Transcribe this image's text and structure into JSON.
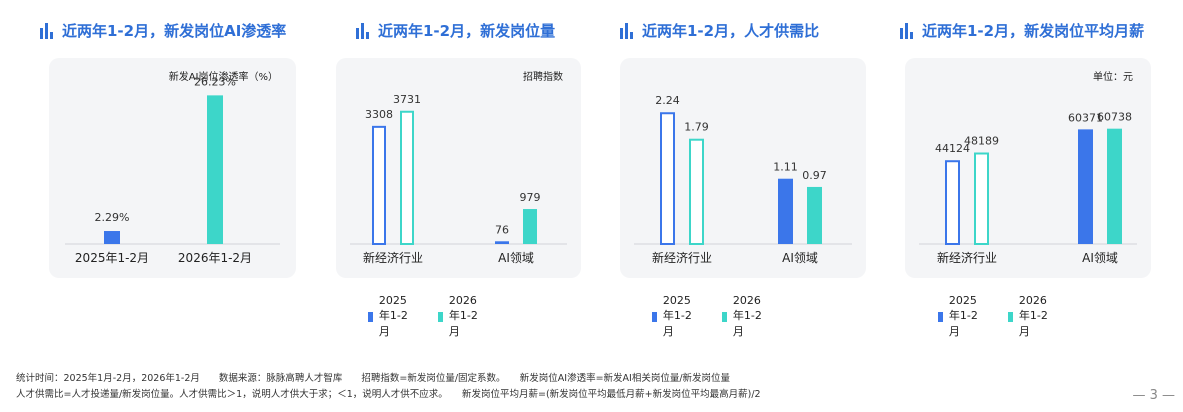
{
  "colors": {
    "blue": "#3b76ea",
    "teal": "#3dd6c9",
    "title": "#2f6fd6"
  },
  "legend": [
    "2025年1-2月",
    "2026年1-2月"
  ],
  "chart_data": [
    {
      "type": "bar",
      "title": "近两年1-2月，新发岗位AI渗透率",
      "unit": "新发AI岗位渗透率（%）",
      "categories": [
        "2025年1-2月",
        "2026年1-2月"
      ],
      "values": [
        2.29,
        26.23
      ],
      "value_labels": [
        "2.29%",
        "26.23%"
      ],
      "ylim": [
        0,
        30
      ]
    },
    {
      "type": "bar",
      "title": "近两年1-2月，新发岗位量",
      "unit": "招聘指数",
      "categories": [
        "新经济行业",
        "AI领域"
      ],
      "series": [
        {
          "name": "2025年1-2月",
          "values": [
            3308,
            76
          ]
        },
        {
          "name": "2026年1-2月",
          "values": [
            3731,
            979
          ]
        }
      ],
      "ylim": [
        0,
        4200
      ]
    },
    {
      "type": "bar",
      "title": "近两年1-2月，人才供需比",
      "unit": "",
      "categories": [
        "新经济行业",
        "AI领域"
      ],
      "series": [
        {
          "name": "2025年1-2月",
          "values": [
            2.24,
            1.11
          ]
        },
        {
          "name": "2026年1-2月",
          "values": [
            1.79,
            0.97
          ]
        }
      ],
      "ylim": [
        0,
        2.55
      ]
    },
    {
      "type": "bar",
      "title": "近两年1-2月，新发岗位平均月薪",
      "unit": "单位：元",
      "categories": [
        "新经济行业",
        "AI领域"
      ],
      "series": [
        {
          "name": "2025年1-2月",
          "values": [
            44124,
            60371
          ]
        },
        {
          "name": "2026年1-2月",
          "values": [
            48189,
            60738
          ]
        }
      ],
      "ylim": [
        0,
        79000
      ]
    }
  ],
  "footnotes": [
    "统计时间：2025年1月-2月，2026年1-2月　　数据来源：脉脉高聘人才智库　　招聘指数=新发岗位量/固定系数。　　新发岗位AI渗透率=新发AI相关岗位量/新发岗位量",
    "人才供需比=人才投递量/新发岗位量。人才供需比＞1，说明人才供大于求；＜1，说明人才供不应求。　　新发岗位平均月薪=(新发岗位平均最低月薪+新发岗位平均最高月薪)/2"
  ],
  "page_number": "— 3 —"
}
